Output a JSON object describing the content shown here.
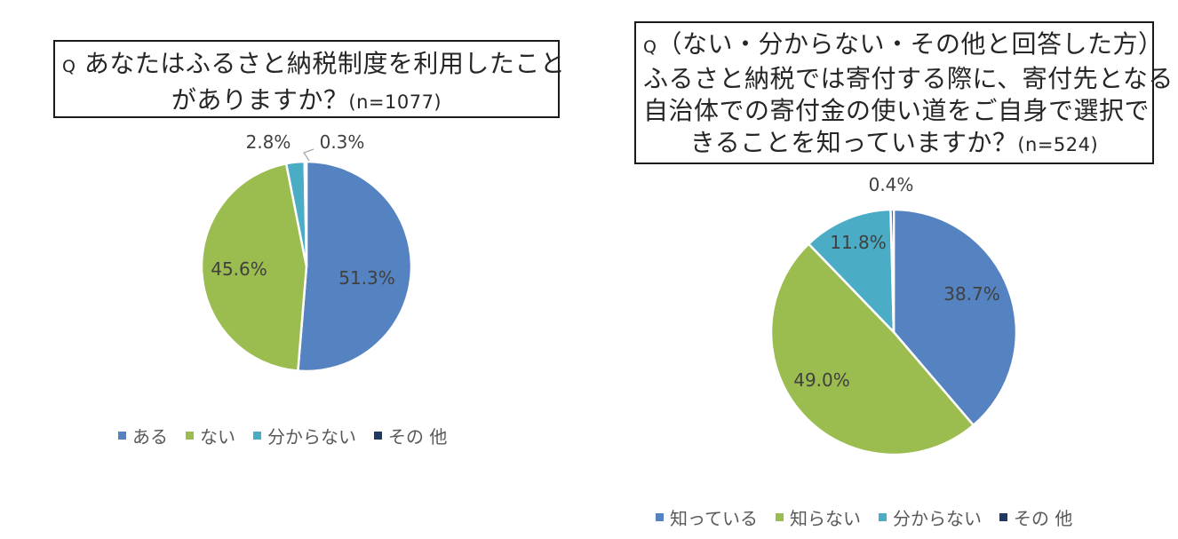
{
  "chart_data": [
    {
      "type": "pie",
      "title_prefix": "Q",
      "title_lines": [
        "あなたはふるさと納税制度を利用したこと",
        "がありますか？"
      ],
      "n_label": "(n=1077)",
      "categories": [
        "ある",
        "ない",
        "分からない",
        "その 他"
      ],
      "values": [
        51.3,
        45.6,
        2.8,
        0.3
      ],
      "value_labels": [
        "51.3%",
        "45.6%",
        "2.8%",
        "0.3%"
      ],
      "colors": [
        "#5582c0",
        "#9bbc4e",
        "#4aacc5",
        "#1f3864"
      ],
      "legend_position": "bottom"
    },
    {
      "type": "pie",
      "title_prefix": "Q",
      "title_lines": [
        "（ない・分からない・その他と回答した方）",
        "ふるさと納税では寄付する際に、寄付先となる",
        "自治体での寄付金の使い道をご自身で選択で",
        "きることを知っていますか？"
      ],
      "n_label": "(n=524)",
      "categories": [
        "知っている",
        "知らない",
        "分からない",
        "その 他"
      ],
      "values": [
        38.7,
        49.0,
        11.8,
        0.4
      ],
      "value_labels": [
        "38.7%",
        "49.0%",
        "11.8%",
        "0.4%"
      ],
      "colors": [
        "#5582c0",
        "#9bbc4e",
        "#4aacc5",
        "#1f3864"
      ],
      "legend_position": "bottom"
    }
  ]
}
